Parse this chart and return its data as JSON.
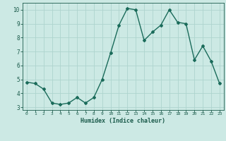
{
  "x": [
    0,
    1,
    2,
    3,
    4,
    5,
    6,
    7,
    8,
    9,
    10,
    11,
    12,
    13,
    14,
    15,
    16,
    17,
    18,
    19,
    20,
    21,
    22,
    23
  ],
  "y": [
    4.8,
    4.7,
    4.3,
    3.3,
    3.2,
    3.3,
    3.7,
    3.3,
    3.7,
    5.0,
    6.9,
    8.9,
    10.1,
    10.0,
    7.8,
    8.4,
    8.9,
    10.0,
    9.1,
    9.0,
    6.4,
    7.4,
    6.3,
    4.7
  ],
  "line_color": "#1a6b5a",
  "marker": "D",
  "marker_size": 2.0,
  "bg_color": "#cce9e4",
  "grid_color": "#aed4ce",
  "xlabel": "Humidex (Indice chaleur)",
  "xlim": [
    -0.5,
    23.5
  ],
  "ylim": [
    2.8,
    10.5
  ],
  "yticks": [
    3,
    4,
    5,
    6,
    7,
    8,
    9,
    10
  ],
  "xticks": [
    0,
    1,
    2,
    3,
    4,
    5,
    6,
    7,
    8,
    9,
    10,
    11,
    12,
    13,
    14,
    15,
    16,
    17,
    18,
    19,
    20,
    21,
    22,
    23
  ],
  "font_color": "#1a5a4a",
  "line_width": 1.0
}
